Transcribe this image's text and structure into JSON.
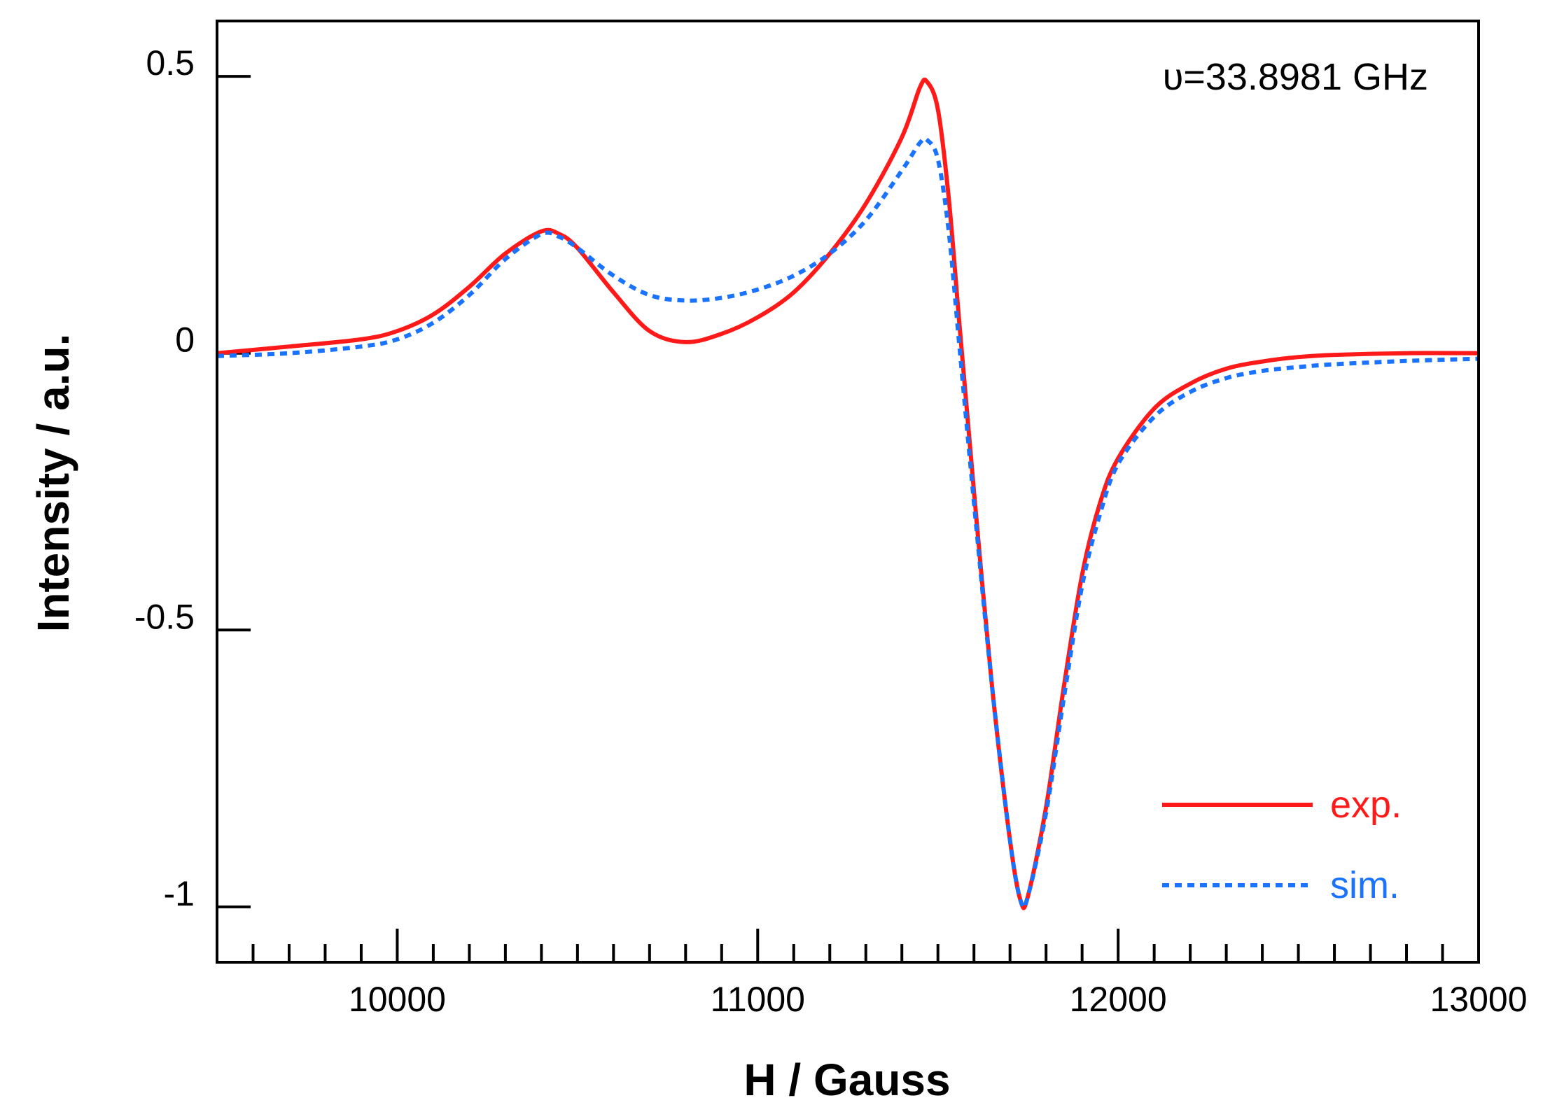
{
  "chart_data": {
    "type": "line",
    "xlabel": "H  /  Gauss",
    "ylabel": "Intensity  /  a.u.",
    "annotation": "υ=33.8981 GHz",
    "xlim": [
      9500,
      13000
    ],
    "ylim": [
      -1.1,
      0.6
    ],
    "x_ticks": [
      10000,
      11000,
      12000,
      13000
    ],
    "x_tick_labels": [
      "10000",
      "11000",
      "12000",
      "13000"
    ],
    "x_minor_step": 100,
    "y_ticks": [
      0.5,
      0,
      -0.5,
      -1
    ],
    "y_tick_labels": [
      "0.5",
      "0",
      "-0.5",
      "-1"
    ],
    "grid": false,
    "legend_position": "bottom-right",
    "series": [
      {
        "name": "exp.",
        "color": "#ff1a1a",
        "style": "solid",
        "points": [
          [
            9500,
            0.0
          ],
          [
            9700,
            0.012
          ],
          [
            9900,
            0.025
          ],
          [
            10000,
            0.04
          ],
          [
            10100,
            0.07
          ],
          [
            10200,
            0.12
          ],
          [
            10300,
            0.18
          ],
          [
            10400,
            0.22
          ],
          [
            10450,
            0.215
          ],
          [
            10500,
            0.19
          ],
          [
            10600,
            0.11
          ],
          [
            10700,
            0.04
          ],
          [
            10800,
            0.02
          ],
          [
            10900,
            0.035
          ],
          [
            11000,
            0.065
          ],
          [
            11100,
            0.11
          ],
          [
            11200,
            0.18
          ],
          [
            11300,
            0.27
          ],
          [
            11400,
            0.39
          ],
          [
            11450,
            0.48
          ],
          [
            11470,
            0.49
          ],
          [
            11500,
            0.44
          ],
          [
            11530,
            0.28
          ],
          [
            11560,
            0.05
          ],
          [
            11600,
            -0.25
          ],
          [
            11650,
            -0.6
          ],
          [
            11700,
            -0.88
          ],
          [
            11730,
            -0.99
          ],
          [
            11750,
            -0.98
          ],
          [
            11800,
            -0.82
          ],
          [
            11850,
            -0.6
          ],
          [
            11900,
            -0.4
          ],
          [
            11950,
            -0.27
          ],
          [
            12000,
            -0.19
          ],
          [
            12100,
            -0.1
          ],
          [
            12200,
            -0.055
          ],
          [
            12300,
            -0.028
          ],
          [
            12400,
            -0.015
          ],
          [
            12500,
            -0.007
          ],
          [
            12600,
            -0.003
          ],
          [
            12800,
            0.0
          ],
          [
            13000,
            0.0
          ]
        ]
      },
      {
        "name": "sim.",
        "color": "#1a73ff",
        "style": "dotted",
        "points": [
          [
            9500,
            -0.005
          ],
          [
            9700,
            0.0
          ],
          [
            9900,
            0.012
          ],
          [
            10000,
            0.025
          ],
          [
            10100,
            0.055
          ],
          [
            10200,
            0.105
          ],
          [
            10300,
            0.17
          ],
          [
            10400,
            0.215
          ],
          [
            10450,
            0.21
          ],
          [
            10500,
            0.19
          ],
          [
            10600,
            0.14
          ],
          [
            10700,
            0.105
          ],
          [
            10800,
            0.095
          ],
          [
            10900,
            0.1
          ],
          [
            11000,
            0.115
          ],
          [
            11100,
            0.14
          ],
          [
            11200,
            0.18
          ],
          [
            11300,
            0.24
          ],
          [
            11400,
            0.33
          ],
          [
            11450,
            0.38
          ],
          [
            11470,
            0.385
          ],
          [
            11500,
            0.35
          ],
          [
            11530,
            0.22
          ],
          [
            11560,
            0.01
          ],
          [
            11600,
            -0.27
          ],
          [
            11650,
            -0.6
          ],
          [
            11700,
            -0.88
          ],
          [
            11730,
            -0.99
          ],
          [
            11750,
            -0.98
          ],
          [
            11800,
            -0.83
          ],
          [
            11850,
            -0.62
          ],
          [
            11900,
            -0.42
          ],
          [
            11950,
            -0.29
          ],
          [
            12000,
            -0.2
          ],
          [
            12100,
            -0.115
          ],
          [
            12200,
            -0.07
          ],
          [
            12300,
            -0.045
          ],
          [
            12400,
            -0.032
          ],
          [
            12500,
            -0.025
          ],
          [
            12600,
            -0.02
          ],
          [
            12800,
            -0.014
          ],
          [
            13000,
            -0.01
          ]
        ]
      }
    ]
  }
}
